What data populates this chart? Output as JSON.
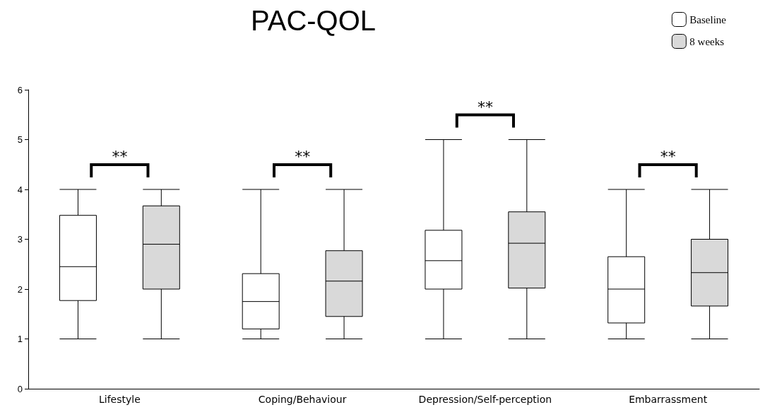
{
  "chart_data": {
    "type": "box",
    "title": "PAC-QOL",
    "categories": [
      "Lifestyle",
      "Coping/Behaviour",
      "Depression/Self-perception",
      "Embarrassment"
    ],
    "series": [
      {
        "name": "Baseline",
        "color": "#ffffff",
        "boxes": [
          {
            "low": 1,
            "q1": 1.77,
            "median": 2.45,
            "q3": 3.48,
            "high": 4
          },
          {
            "low": 1,
            "q1": 1.2,
            "median": 1.75,
            "q3": 2.31,
            "high": 4
          },
          {
            "low": 1,
            "q1": 2,
            "median": 2.57,
            "q3": 3.18,
            "high": 5
          },
          {
            "low": 1,
            "q1": 1.32,
            "median": 2,
            "q3": 2.65,
            "high": 4
          }
        ]
      },
      {
        "name": "8 weeks",
        "color": "#d9d9d9",
        "boxes": [
          {
            "low": 1,
            "q1": 2,
            "median": 2.9,
            "q3": 3.67,
            "high": 4
          },
          {
            "low": 1,
            "q1": 1.45,
            "median": 2.16,
            "q3": 2.77,
            "high": 4
          },
          {
            "low": 1,
            "q1": 2.02,
            "median": 2.92,
            "q3": 3.55,
            "high": 5
          },
          {
            "low": 1,
            "q1": 1.66,
            "median": 2.33,
            "q3": 3,
            "high": 4
          }
        ]
      }
    ],
    "ylim": [
      0,
      6
    ],
    "yticks": [
      0,
      1,
      2,
      3,
      4,
      5,
      6
    ],
    "grid": false,
    "legend": "top right",
    "annotations": [
      "**",
      "**",
      "**",
      "**"
    ]
  }
}
